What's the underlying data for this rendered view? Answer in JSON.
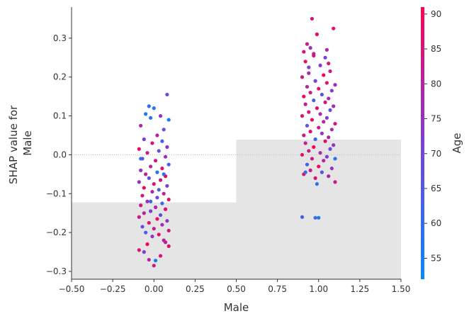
{
  "chart_data": {
    "type": "scatter",
    "title": "",
    "xlabel": "Male",
    "ylabel": "SHAP value for\nMale",
    "xlim": [
      -0.5,
      1.5
    ],
    "ylim": [
      -0.32,
      0.38
    ],
    "xticks": [
      -0.5,
      -0.25,
      0.0,
      0.25,
      0.5,
      0.75,
      1.0,
      1.25,
      1.5
    ],
    "xtick_labels": [
      "−0.50",
      "−0.25",
      "0.00",
      "0.25",
      "0.50",
      "0.75",
      "1.00",
      "1.25",
      "1.50"
    ],
    "yticks": [
      -0.3,
      -0.2,
      -0.1,
      0.0,
      0.1,
      0.2,
      0.3
    ],
    "ytick_labels": [
      "−0.3",
      "−0.2",
      "−0.1",
      "0.0",
      "0.1",
      "0.2",
      "0.3"
    ],
    "histogram_background": [
      {
        "x_from": -0.5,
        "x_to": 0.5,
        "height": 0.022
      },
      {
        "x_from": 0.5,
        "x_to": 1.5,
        "height": 0.04
      }
    ],
    "zero_line": true,
    "colorbar": {
      "label": "Age",
      "range": [
        52,
        91
      ],
      "ticks": [
        55,
        60,
        65,
        70,
        75,
        80,
        85,
        90
      ],
      "tick_labels": [
        "55",
        "60",
        "65",
        "70",
        "75",
        "80",
        "85",
        "90"
      ],
      "colors": [
        "#008bfb",
        "#7c3fd8",
        "#ff0051"
      ]
    },
    "series": [
      {
        "category": 0,
        "points": [
          {
            "x": -0.03,
            "y": 0.125,
            "age": 60
          },
          {
            "x": -0.05,
            "y": 0.105,
            "age": 56
          },
          {
            "x": 0.0,
            "y": 0.12,
            "age": 58
          },
          {
            "x": 0.08,
            "y": 0.155,
            "age": 70
          },
          {
            "x": 0.04,
            "y": 0.1,
            "age": 76
          },
          {
            "x": -0.02,
            "y": 0.095,
            "age": 57
          },
          {
            "x": 0.09,
            "y": 0.09,
            "age": 55
          },
          {
            "x": -0.08,
            "y": 0.075,
            "age": 78
          },
          {
            "x": 0.06,
            "y": 0.065,
            "age": 68
          },
          {
            "x": 0.02,
            "y": 0.05,
            "age": 80
          },
          {
            "x": -0.06,
            "y": 0.04,
            "age": 72
          },
          {
            "x": 0.05,
            "y": 0.035,
            "age": 63
          },
          {
            "x": -0.01,
            "y": 0.03,
            "age": 85
          },
          {
            "x": 0.08,
            "y": 0.02,
            "age": 74
          },
          {
            "x": -0.09,
            "y": 0.015,
            "age": 88
          },
          {
            "x": 0.03,
            "y": 0.01,
            "age": 66
          },
          {
            "x": -0.04,
            "y": 0.005,
            "age": 82
          },
          {
            "x": 0.07,
            "y": -0.005,
            "age": 77
          },
          {
            "x": -0.07,
            "y": -0.01,
            "age": 69
          },
          {
            "x": 0.01,
            "y": -0.015,
            "age": 84
          },
          {
            "x": 0.09,
            "y": -0.025,
            "age": 62
          },
          {
            "x": -0.02,
            "y": -0.03,
            "age": 79
          },
          {
            "x": 0.05,
            "y": -0.035,
            "age": 87
          },
          {
            "x": -0.08,
            "y": -0.04,
            "age": 73
          },
          {
            "x": 0.02,
            "y": -0.045,
            "age": 58
          },
          {
            "x": -0.05,
            "y": -0.05,
            "age": 81
          },
          {
            "x": 0.07,
            "y": -0.055,
            "age": 90
          },
          {
            "x": -0.03,
            "y": -0.06,
            "age": 67
          },
          {
            "x": 0.04,
            "y": -0.065,
            "age": 83
          },
          {
            "x": -0.09,
            "y": -0.07,
            "age": 75
          },
          {
            "x": 0.0,
            "y": -0.075,
            "age": 86
          },
          {
            "x": 0.08,
            "y": -0.08,
            "age": 71
          },
          {
            "x": -0.06,
            "y": -0.085,
            "age": 89
          },
          {
            "x": 0.03,
            "y": -0.09,
            "age": 64
          },
          {
            "x": -0.01,
            "y": -0.095,
            "age": 78
          },
          {
            "x": 0.06,
            "y": -0.1,
            "age": 82
          },
          {
            "x": -0.07,
            "y": -0.105,
            "age": 85
          },
          {
            "x": 0.02,
            "y": -0.11,
            "age": 70
          },
          {
            "x": 0.09,
            "y": -0.115,
            "age": 88
          },
          {
            "x": -0.04,
            "y": -0.12,
            "age": 76
          },
          {
            "x": 0.05,
            "y": -0.125,
            "age": 61
          },
          {
            "x": -0.08,
            "y": -0.13,
            "age": 84
          },
          {
            "x": 0.01,
            "y": -0.135,
            "age": 79
          },
          {
            "x": 0.07,
            "y": -0.14,
            "age": 87
          },
          {
            "x": -0.02,
            "y": -0.145,
            "age": 72
          },
          {
            "x": -0.06,
            "y": -0.15,
            "age": 80
          },
          {
            "x": 0.04,
            "y": -0.155,
            "age": 66
          },
          {
            "x": -0.09,
            "y": -0.16,
            "age": 83
          },
          {
            "x": 0.02,
            "y": -0.165,
            "age": 89
          },
          {
            "x": 0.08,
            "y": -0.17,
            "age": 74
          },
          {
            "x": -0.03,
            "y": -0.175,
            "age": 86
          },
          {
            "x": 0.05,
            "y": -0.18,
            "age": 77
          },
          {
            "x": -0.07,
            "y": -0.185,
            "age": 69
          },
          {
            "x": 0.0,
            "y": -0.19,
            "age": 82
          },
          {
            "x": 0.09,
            "y": -0.195,
            "age": 85
          },
          {
            "x": -0.05,
            "y": -0.2,
            "age": 63
          },
          {
            "x": 0.03,
            "y": -0.205,
            "age": 88
          },
          {
            "x": -0.01,
            "y": -0.21,
            "age": 75
          },
          {
            "x": 0.06,
            "y": -0.22,
            "age": 81
          },
          {
            "x": -0.04,
            "y": -0.23,
            "age": 90
          },
          {
            "x": 0.07,
            "y": -0.225,
            "age": 79
          },
          {
            "x": -0.09,
            "y": -0.245,
            "age": 84
          },
          {
            "x": -0.06,
            "y": -0.25,
            "age": 72
          },
          {
            "x": 0.09,
            "y": -0.235,
            "age": 87
          },
          {
            "x": -0.03,
            "y": -0.27,
            "age": 80
          },
          {
            "x": 0.01,
            "y": -0.272,
            "age": 55
          },
          {
            "x": 0.0,
            "y": -0.285,
            "age": 83
          },
          {
            "x": 0.04,
            "y": -0.26,
            "age": 86
          },
          {
            "x": -0.08,
            "y": -0.01,
            "age": 60
          },
          {
            "x": 0.06,
            "y": -0.05,
            "age": 58
          },
          {
            "x": -0.02,
            "y": -0.12,
            "age": 62
          }
        ]
      },
      {
        "category": 1,
        "points": [
          {
            "x": 0.96,
            "y": 0.35,
            "age": 84
          },
          {
            "x": 0.99,
            "y": 0.31,
            "age": 90
          },
          {
            "x": 1.09,
            "y": 0.325,
            "age": 87
          },
          {
            "x": 0.93,
            "y": 0.285,
            "age": 82
          },
          {
            "x": 0.95,
            "y": 0.275,
            "age": 76
          },
          {
            "x": 0.91,
            "y": 0.265,
            "age": 86
          },
          {
            "x": 1.04,
            "y": 0.25,
            "age": 70
          },
          {
            "x": 0.97,
            "y": 0.26,
            "age": 79
          },
          {
            "x": 1.06,
            "y": 0.235,
            "age": 85
          },
          {
            "x": 0.92,
            "y": 0.24,
            "age": 88
          },
          {
            "x": 1.01,
            "y": 0.23,
            "age": 74
          },
          {
            "x": 1.07,
            "y": 0.215,
            "age": 82
          },
          {
            "x": 0.94,
            "y": 0.21,
            "age": 77
          },
          {
            "x": 1.03,
            "y": 0.205,
            "age": 89
          },
          {
            "x": 0.9,
            "y": 0.2,
            "age": 83
          },
          {
            "x": 0.98,
            "y": 0.19,
            "age": 71
          },
          {
            "x": 1.05,
            "y": 0.185,
            "age": 86
          },
          {
            "x": 1.1,
            "y": 0.18,
            "age": 78
          },
          {
            "x": 0.93,
            "y": 0.175,
            "age": 80
          },
          {
            "x": 1.0,
            "y": 0.17,
            "age": 88
          },
          {
            "x": 1.08,
            "y": 0.165,
            "age": 73
          },
          {
            "x": 0.95,
            "y": 0.16,
            "age": 84
          },
          {
            "x": 1.02,
            "y": 0.155,
            "age": 67
          },
          {
            "x": 0.91,
            "y": 0.15,
            "age": 90
          },
          {
            "x": 1.06,
            "y": 0.145,
            "age": 79
          },
          {
            "x": 0.97,
            "y": 0.14,
            "age": 64
          },
          {
            "x": 1.04,
            "y": 0.135,
            "age": 85
          },
          {
            "x": 0.92,
            "y": 0.13,
            "age": 81
          },
          {
            "x": 1.09,
            "y": 0.125,
            "age": 76
          },
          {
            "x": 0.99,
            "y": 0.12,
            "age": 87
          },
          {
            "x": 1.07,
            "y": 0.115,
            "age": 69
          },
          {
            "x": 0.94,
            "y": 0.11,
            "age": 83
          },
          {
            "x": 1.01,
            "y": 0.105,
            "age": 78
          },
          {
            "x": 0.9,
            "y": 0.1,
            "age": 86
          },
          {
            "x": 1.05,
            "y": 0.095,
            "age": 72
          },
          {
            "x": 0.96,
            "y": 0.09,
            "age": 89
          },
          {
            "x": 1.03,
            "y": 0.085,
            "age": 80
          },
          {
            "x": 1.1,
            "y": 0.08,
            "age": 84
          },
          {
            "x": 0.93,
            "y": 0.075,
            "age": 66
          },
          {
            "x": 1.0,
            "y": 0.07,
            "age": 82
          },
          {
            "x": 1.08,
            "y": 0.065,
            "age": 77
          },
          {
            "x": 0.95,
            "y": 0.06,
            "age": 88
          },
          {
            "x": 1.02,
            "y": 0.055,
            "age": 74
          },
          {
            "x": 0.91,
            "y": 0.05,
            "age": 85
          },
          {
            "x": 1.06,
            "y": 0.045,
            "age": 79
          },
          {
            "x": 0.98,
            "y": 0.04,
            "age": 62
          },
          {
            "x": 1.04,
            "y": 0.035,
            "age": 87
          },
          {
            "x": 0.92,
            "y": 0.03,
            "age": 81
          },
          {
            "x": 1.09,
            "y": 0.025,
            "age": 75
          },
          {
            "x": 0.97,
            "y": 0.02,
            "age": 90
          },
          {
            "x": 1.07,
            "y": 0.015,
            "age": 68
          },
          {
            "x": 0.94,
            "y": 0.01,
            "age": 83
          },
          {
            "x": 1.01,
            "y": 0.005,
            "age": 78
          },
          {
            "x": 0.9,
            "y": 0.0,
            "age": 86
          },
          {
            "x": 1.05,
            "y": -0.005,
            "age": 72
          },
          {
            "x": 0.96,
            "y": -0.01,
            "age": 84
          },
          {
            "x": 1.03,
            "y": -0.015,
            "age": 80
          },
          {
            "x": 1.1,
            "y": -0.01,
            "age": 58
          },
          {
            "x": 0.93,
            "y": -0.025,
            "age": 63
          },
          {
            "x": 1.0,
            "y": -0.03,
            "age": 89
          },
          {
            "x": 1.08,
            "y": -0.035,
            "age": 76
          },
          {
            "x": 0.95,
            "y": -0.04,
            "age": 82
          },
          {
            "x": 1.02,
            "y": -0.045,
            "age": 66
          },
          {
            "x": 0.91,
            "y": -0.05,
            "age": 87
          },
          {
            "x": 1.06,
            "y": -0.055,
            "age": 79
          },
          {
            "x": 0.98,
            "y": -0.06,
            "age": 85
          },
          {
            "x": 1.1,
            "y": -0.07,
            "age": 83
          },
          {
            "x": 0.99,
            "y": -0.075,
            "age": 57
          },
          {
            "x": 0.92,
            "y": -0.045,
            "age": 61
          },
          {
            "x": 0.9,
            "y": -0.16,
            "age": 63
          },
          {
            "x": 0.98,
            "y": -0.162,
            "age": 60
          },
          {
            "x": 1.0,
            "y": -0.162,
            "age": 57
          },
          {
            "x": 0.97,
            "y": 0.255,
            "age": 86
          },
          {
            "x": 1.05,
            "y": 0.27,
            "age": 80
          },
          {
            "x": 0.94,
            "y": 0.225,
            "age": 72
          }
        ]
      }
    ]
  }
}
